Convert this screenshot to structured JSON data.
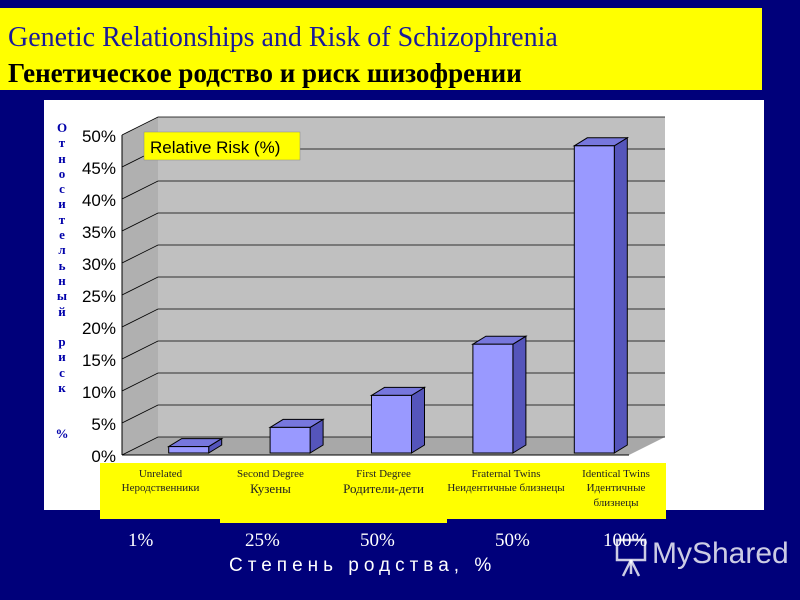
{
  "header": {
    "title_en": "Genetic Relationships and Risk of Schizophrenia",
    "title_ru": "Генетическое родство и риск шизофрении"
  },
  "chart_data": {
    "type": "bar",
    "title": "Relative Risk (%)",
    "ylabel": "Относительный риск %",
    "xlabel": "Степень родства, %",
    "ylim": [
      0,
      50
    ],
    "yticks": [
      "0%",
      "5%",
      "10%",
      "15%",
      "20%",
      "25%",
      "30%",
      "35%",
      "40%",
      "45%",
      "50%"
    ],
    "categories": [
      {
        "en": "Unrelated",
        "ru": "Неродственники",
        "degree": "1%"
      },
      {
        "en": "Second Degree",
        "ru": "Кузены",
        "degree": "25%"
      },
      {
        "en": "First Degree",
        "ru": "Родители-дети",
        "degree": "50%"
      },
      {
        "en": "Fraternal Twins",
        "ru": "Неидентичные близнецы",
        "degree": "50%"
      },
      {
        "en": "Identical Twins",
        "ru": "Идентичные близнецы",
        "degree": "100%"
      }
    ],
    "values": [
      1,
      4,
      9,
      17,
      48
    ],
    "grid": true,
    "colors": {
      "bar_front": "#9999ff",
      "bar_side": "#5555bb",
      "bar_top": "#7777dd",
      "wall": "#c0c0c0",
      "floor": "#a8a8a8"
    }
  },
  "watermark": "MyShared"
}
